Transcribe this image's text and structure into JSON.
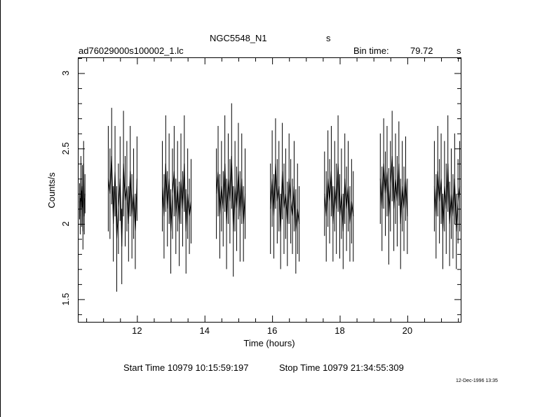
{
  "header": {
    "title": "NGC5548_N1",
    "title_unit": "s",
    "filename": "ad76029000s100002_1.lc",
    "bin_time_label": "Bin time:",
    "bin_time_value": "79.72",
    "bin_time_unit": "s"
  },
  "footer": {
    "start_time": "Start Time 10979 10:15:59:197",
    "stop_time": "Stop Time 10979 21:34:55:309",
    "timestamp": "12-Dec-1996 13:35"
  },
  "chart_data": {
    "type": "line",
    "title": "NGC5548_N1",
    "xlabel": "Time (hours)",
    "ylabel": "Counts/s",
    "xlim": [
      10.27,
      21.58
    ],
    "ylim": [
      1.35,
      3.1
    ],
    "xticks": [
      12,
      14,
      16,
      18,
      20
    ],
    "yticks": [
      1.5,
      2,
      2.5,
      3
    ],
    "ytick_labels": [
      "1.5",
      "2",
      "2.5",
      "3"
    ],
    "grid": false,
    "legend": "none",
    "segments": [
      {
        "x": [
          10.3,
          10.32,
          10.34,
          10.36,
          10.38,
          10.4,
          10.42,
          10.44,
          10.46
        ],
        "y": [
          2.15,
          2.05,
          2.3,
          2.1,
          2.25,
          1.95,
          2.4,
          2.05,
          2.2
        ],
        "err": [
          0.12,
          0.12,
          0.15,
          0.12,
          0.14,
          0.12,
          0.15,
          0.12,
          0.13
        ]
      },
      {
        "x": [
          11.15,
          11.2,
          11.25,
          11.3,
          11.35,
          11.4,
          11.45,
          11.5,
          11.55,
          11.6,
          11.65,
          11.7,
          11.75,
          11.8,
          11.85,
          11.9,
          11.95,
          12.0
        ],
        "y": [
          2.3,
          2.2,
          2.45,
          2.0,
          2.35,
          1.9,
          2.1,
          2.3,
          1.85,
          2.4,
          2.15,
          2.25,
          2.0,
          2.35,
          2.05,
          2.2,
          1.95,
          2.3
        ],
        "err": [
          0.35,
          0.3,
          0.32,
          0.25,
          0.3,
          0.35,
          0.3,
          0.28,
          0.25,
          0.35,
          0.3,
          0.3,
          0.25,
          0.3,
          0.28,
          0.3,
          0.25,
          0.28
        ]
      },
      {
        "x": [
          12.75,
          12.8,
          12.85,
          12.9,
          12.95,
          13.0,
          13.05,
          13.1,
          13.15,
          13.2,
          13.25,
          13.3,
          13.35,
          13.4,
          13.45,
          13.5,
          13.55,
          13.6
        ],
        "y": [
          2.25,
          2.05,
          2.4,
          2.1,
          2.3,
          1.95,
          2.2,
          2.35,
          2.05,
          2.25,
          2.0,
          2.3,
          2.1,
          2.4,
          1.95,
          2.2,
          2.05,
          2.15
        ],
        "err": [
          0.3,
          0.28,
          0.32,
          0.25,
          0.3,
          0.28,
          0.3,
          0.3,
          0.25,
          0.3,
          0.28,
          0.3,
          0.25,
          0.32,
          0.28,
          0.3,
          0.25,
          0.28
        ]
      },
      {
        "x": [
          14.35,
          14.4,
          14.45,
          14.5,
          14.55,
          14.6,
          14.65,
          14.7,
          14.75,
          14.8,
          14.85,
          14.9,
          14.95,
          15.0,
          15.05,
          15.1,
          15.15,
          15.2
        ],
        "y": [
          2.2,
          2.35,
          2.05,
          2.25,
          2.1,
          2.4,
          2.0,
          2.3,
          2.15,
          2.45,
          1.95,
          2.25,
          2.1,
          2.35,
          2.05,
          2.3,
          2.0,
          2.2
        ],
        "err": [
          0.3,
          0.3,
          0.28,
          0.3,
          0.25,
          0.32,
          0.3,
          0.3,
          0.28,
          0.35,
          0.3,
          0.3,
          0.28,
          0.32,
          0.3,
          0.3,
          0.25,
          0.3
        ]
      },
      {
        "x": [
          15.95,
          16.0,
          16.05,
          16.1,
          16.15,
          16.2,
          16.25,
          16.3,
          16.35,
          16.4,
          16.45,
          16.5,
          16.55,
          16.6,
          16.65,
          16.7,
          16.75,
          16.8
        ],
        "y": [
          2.1,
          2.3,
          2.05,
          2.4,
          2.15,
          2.25,
          1.95,
          2.35,
          2.1,
          2.2,
          2.0,
          2.3,
          2.15,
          2.05,
          2.25,
          1.95,
          2.1,
          2.0
        ],
        "err": [
          0.3,
          0.32,
          0.28,
          0.3,
          0.28,
          0.3,
          0.25,
          0.32,
          0.3,
          0.3,
          0.28,
          0.3,
          0.28,
          0.25,
          0.3,
          0.28,
          0.3,
          0.25
        ]
      },
      {
        "x": [
          17.55,
          17.6,
          17.65,
          17.7,
          17.75,
          17.8,
          17.85,
          17.9,
          17.95,
          18.0,
          18.05,
          18.1,
          18.15,
          18.2,
          18.25,
          18.3,
          18.35,
          18.4
        ],
        "y": [
          2.2,
          2.05,
          2.3,
          2.15,
          2.35,
          2.0,
          2.25,
          2.1,
          2.4,
          2.05,
          2.2,
          1.95,
          2.3,
          2.1,
          2.25,
          2.0,
          2.15,
          2.05
        ],
        "err": [
          0.28,
          0.3,
          0.32,
          0.28,
          0.3,
          0.25,
          0.3,
          0.3,
          0.32,
          0.28,
          0.3,
          0.25,
          0.3,
          0.28,
          0.3,
          0.25,
          0.28,
          0.3
        ]
      },
      {
        "x": [
          19.2,
          19.25,
          19.3,
          19.35,
          19.4,
          19.45,
          19.5,
          19.55,
          19.6,
          19.65,
          19.7,
          19.75,
          19.8,
          19.85,
          19.9,
          19.95,
          20.0
        ],
        "y": [
          2.3,
          2.1,
          2.4,
          2.2,
          2.35,
          2.05,
          2.25,
          2.45,
          2.1,
          2.3,
          2.15,
          2.4,
          2.0,
          2.25,
          2.1,
          2.3,
          2.05
        ],
        "err": [
          0.3,
          0.28,
          0.3,
          0.28,
          0.3,
          0.32,
          0.3,
          0.3,
          0.28,
          0.3,
          0.3,
          0.28,
          0.3,
          0.3,
          0.28,
          0.28,
          0.25
        ]
      },
      {
        "x": [
          20.8,
          20.85,
          20.9,
          20.95,
          21.0,
          21.05,
          21.1,
          21.15,
          21.2,
          21.25,
          21.3,
          21.35,
          21.4,
          21.45,
          21.5,
          21.55
        ],
        "y": [
          2.25,
          2.05,
          2.35,
          2.15,
          2.3,
          1.95,
          2.25,
          2.1,
          2.4,
          2.0,
          2.2,
          2.05,
          2.3,
          1.95,
          2.15,
          2.25
        ],
        "err": [
          0.3,
          0.28,
          0.3,
          0.28,
          0.3,
          0.25,
          0.3,
          0.3,
          0.32,
          0.28,
          0.3,
          0.28,
          0.3,
          0.25,
          0.28,
          0.3
        ]
      }
    ]
  }
}
